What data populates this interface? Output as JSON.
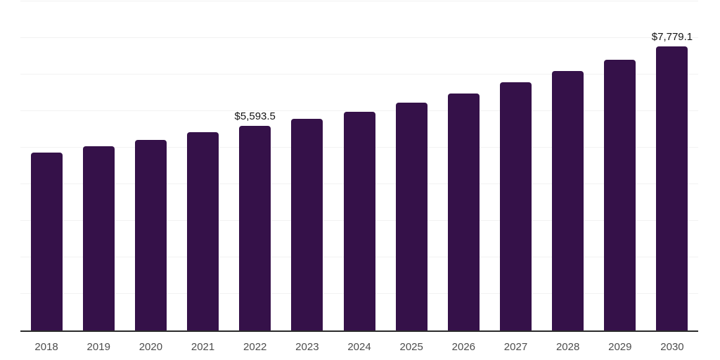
{
  "chart_data": {
    "type": "bar",
    "title": "",
    "xlabel": "",
    "ylabel": "",
    "categories": [
      "2018",
      "2019",
      "2020",
      "2021",
      "2022",
      "2023",
      "2024",
      "2025",
      "2026",
      "2027",
      "2028",
      "2029",
      "2030"
    ],
    "values": [
      4870,
      5040,
      5210,
      5420,
      5593.5,
      5780,
      5990,
      6240,
      6490,
      6780,
      7090,
      7410,
      7779.1
    ],
    "data_labels": [
      {
        "category": "2022",
        "text": "$5,593.5"
      },
      {
        "category": "2030",
        "text": "$7,779.1"
      }
    ],
    "ylim": [
      0,
      9000
    ],
    "gridline_step": 1000,
    "grid": true,
    "y_axis_tick_labels_visible": false,
    "legend_position": "none"
  },
  "style": {
    "bar_color": "#351149",
    "gridline_color": "#f2f2f2",
    "axis_line_color": "#2b2b2b",
    "data_label_color": "#141414",
    "tick_label_color": "#4d4d4d",
    "background_color": "#ffffff"
  }
}
